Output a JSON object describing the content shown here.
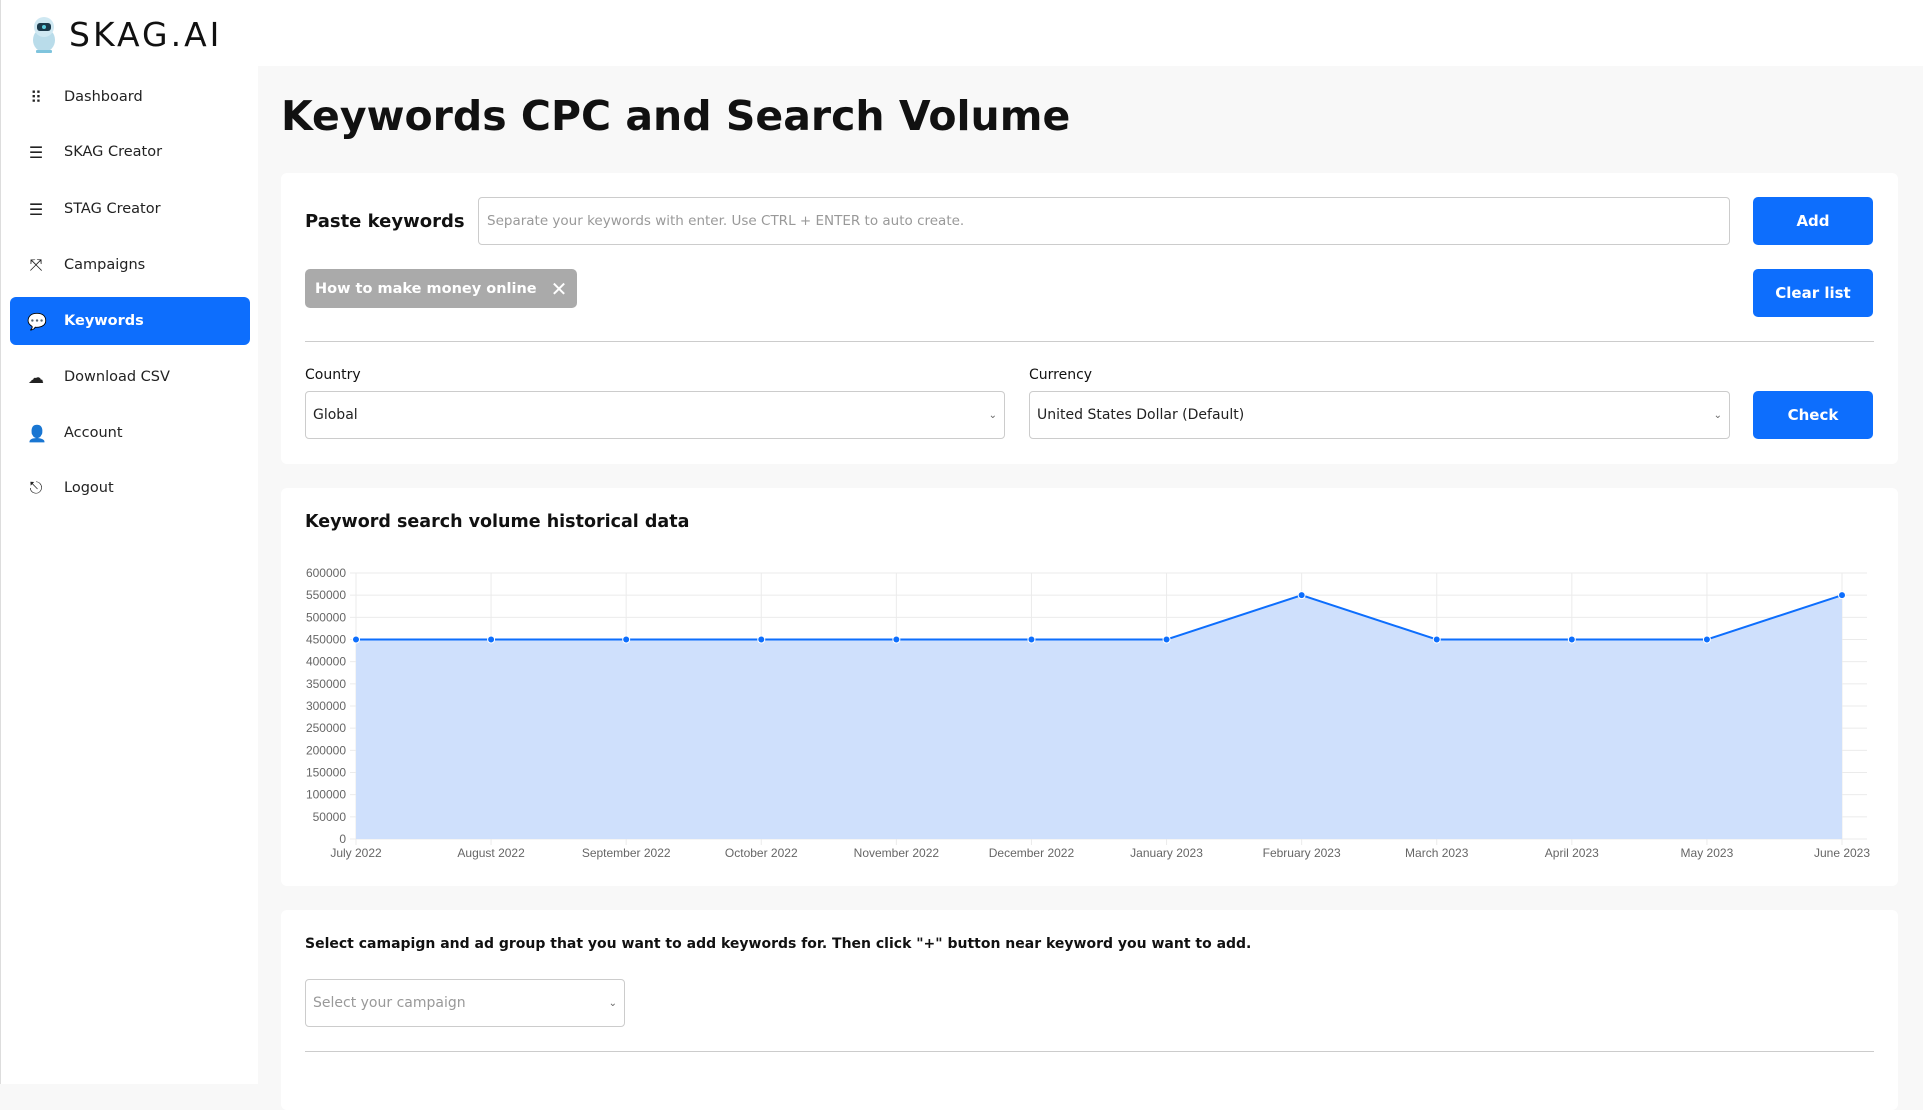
{
  "brand": {
    "name": "SKAG.AI"
  },
  "sidebar": {
    "items": [
      {
        "label": "Dashboard",
        "icon": "grid-icon",
        "active": false
      },
      {
        "label": "SKAG Creator",
        "icon": "sliders-icon",
        "active": false
      },
      {
        "label": "STAG Creator",
        "icon": "sliders-icon",
        "active": false
      },
      {
        "label": "Campaigns",
        "icon": "compress-arrows-icon",
        "active": true
      },
      {
        "label": "Keywords",
        "icon": "chat-bubble-icon",
        "active": true
      },
      {
        "label": "Download CSV",
        "icon": "cloud-download-icon",
        "active": false
      },
      {
        "label": "Account",
        "icon": "user-icon",
        "active": false
      },
      {
        "label": "Logout",
        "icon": "logout-icon",
        "active": false
      }
    ]
  },
  "page": {
    "title": "Keywords CPC and Search Volume"
  },
  "keywords_form": {
    "label": "Paste keywords",
    "placeholder": "Separate your keywords with enter. Use CTRL + ENTER to auto create.",
    "add_label": "Add",
    "clear_label": "Clear list",
    "chips": [
      "How to make money online"
    ],
    "country_label": "Country",
    "country_value": "Global",
    "currency_label": "Currency",
    "currency_value": "United States Dollar (Default)",
    "check_label": "Check"
  },
  "chart_section": {
    "title": "Keyword search volume historical data"
  },
  "chart_data": {
    "type": "area",
    "categories": [
      "July 2022",
      "August 2022",
      "September 2022",
      "October 2022",
      "November 2022",
      "December 2022",
      "January 2023",
      "February 2023",
      "March 2023",
      "April 2023",
      "May 2023",
      "June 2023"
    ],
    "values": [
      450000,
      450000,
      450000,
      450000,
      450000,
      450000,
      450000,
      550000,
      450000,
      450000,
      450000,
      550000
    ],
    "ylim": [
      0,
      600000
    ],
    "yticks": [
      0,
      50000,
      100000,
      150000,
      200000,
      250000,
      300000,
      350000,
      400000,
      450000,
      500000,
      550000,
      600000
    ],
    "grid": true,
    "color": "#0d6efd",
    "fill": "#cfe0fc"
  },
  "campaign_section": {
    "instruction": "Select camapign and ad group that you want to add keywords for. Then click \"+\" button near keyword you want to add.",
    "select_placeholder": "Select your campaign"
  },
  "colors": {
    "accent": "#0d6efd"
  }
}
